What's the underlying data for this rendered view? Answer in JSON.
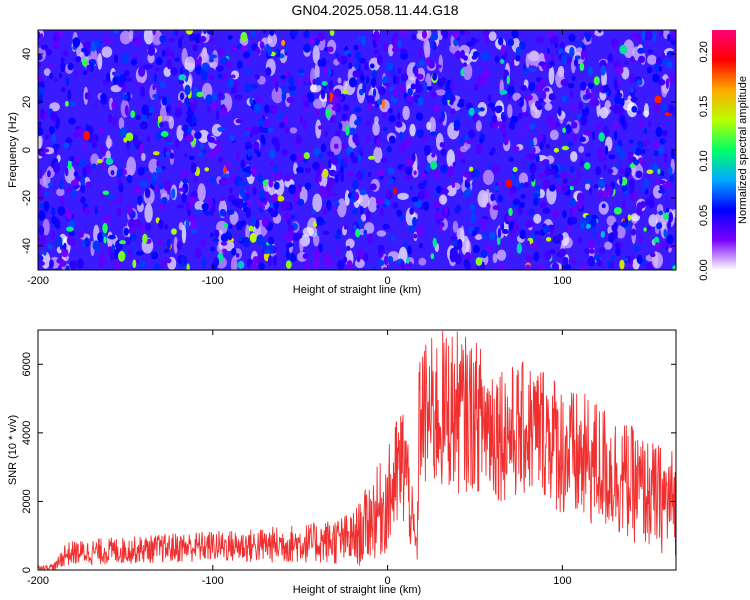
{
  "title": "GN04.2025.058.11.44.G18",
  "chart_data": [
    {
      "type": "heatmap",
      "xlabel": "Height of straight line (km)",
      "ylabel": "Frequency (Hz)",
      "xlim": [
        -200,
        165
      ],
      "ylim": [
        -50,
        50
      ],
      "xticks": [
        -200,
        -100,
        0,
        100
      ],
      "yticks": [
        -40,
        -20,
        0,
        20,
        40
      ],
      "colorbar": {
        "label": "Normalized spectral amplitude",
        "range": [
          0,
          0.22
        ],
        "ticks": [
          "0.00",
          "0.05",
          "0.10",
          "0.15",
          "0.20"
        ],
        "colors": [
          "#ffffff",
          "#7a00ff",
          "#0000ff",
          "#00aaff",
          "#00ff66",
          "#bbff00",
          "#ffaa00",
          "#ff0000",
          "#ff0077"
        ]
      },
      "background_color": "#3a1bff",
      "description_values": {
        "typical_amplitude": 0.04,
        "peak_amplitude": 0.2
      }
    },
    {
      "type": "line",
      "xlabel": "Height of straight line (km)",
      "ylabel": "SNR (10 * v/v)",
      "xlim": [
        -200,
        165
      ],
      "ylim": [
        0,
        7000
      ],
      "xticks": [
        -200,
        -100,
        0,
        100
      ],
      "yticks": [
        0,
        2000,
        4000,
        6000
      ],
      "color": "#f03030",
      "series": [
        {
          "x": [
            -200,
            -195,
            -190,
            -185,
            -180,
            -160,
            -140,
            -120,
            -100,
            -80,
            -60,
            -40,
            -30,
            -20,
            -15,
            -10,
            -5,
            0,
            5,
            10,
            15,
            17,
            18,
            20,
            25,
            30,
            35,
            40,
            50,
            60,
            70,
            80,
            90,
            95,
            100,
            105,
            110,
            120,
            130,
            140,
            150,
            160,
            165
          ],
          "y": [
            80,
            80,
            100,
            450,
            500,
            550,
            600,
            650,
            700,
            700,
            750,
            800,
            850,
            900,
            1100,
            1500,
            1700,
            2000,
            2700,
            3200,
            1000,
            600,
            4500,
            4500,
            4500,
            4600,
            4700,
            4600,
            4500,
            4200,
            4000,
            4100,
            4100,
            3800,
            3500,
            3300,
            3200,
            3100,
            2800,
            2500,
            2200,
            2000,
            2000
          ],
          "spread": [
            60,
            60,
            120,
            350,
            350,
            400,
            400,
            450,
            450,
            500,
            550,
            600,
            700,
            800,
            1000,
            1200,
            1400,
            1500,
            1800,
            2000,
            800,
            500,
            2000,
            2200,
            2300,
            2400,
            2400,
            2400,
            2200,
            2200,
            2000,
            2000,
            2000,
            2000,
            2000,
            2000,
            2000,
            1900,
            1800,
            1700,
            1600,
            1600,
            1600
          ]
        }
      ]
    }
  ]
}
